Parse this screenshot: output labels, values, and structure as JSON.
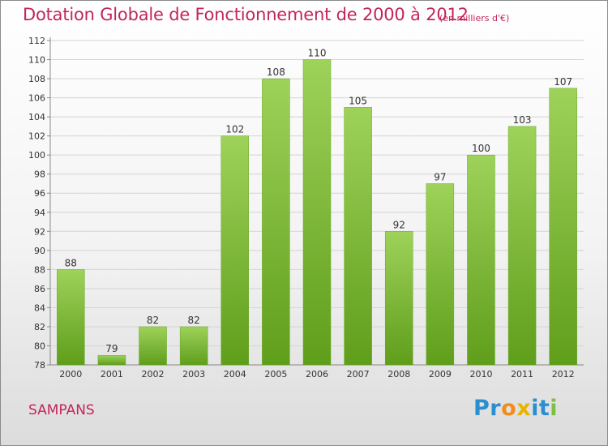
{
  "header": {
    "title": "Dotation Globale de Fonctionnement de 2000 à 2012",
    "unit": "(en milliers d'€)"
  },
  "footer": {
    "commune": "SAMPANS",
    "logo_letters": [
      {
        "char": "P",
        "color": "#2a8fd0"
      },
      {
        "char": "r",
        "color": "#2a8fd0"
      },
      {
        "char": "o",
        "color": "#f28c1b"
      },
      {
        "char": "x",
        "color": "#e8b400"
      },
      {
        "char": "i",
        "color": "#2a8fd0"
      },
      {
        "char": "t",
        "color": "#2a8fd0"
      },
      {
        "char": "i",
        "color": "#7cc242"
      }
    ]
  },
  "colors": {
    "bar_light": "#9ed25a",
    "bar_dark": "#5f9e1b",
    "title": "#c2255c"
  },
  "chart_data": {
    "type": "bar",
    "categories": [
      "2000",
      "2001",
      "2002",
      "2003",
      "2004",
      "2005",
      "2006",
      "2007",
      "2008",
      "2009",
      "2010",
      "2011",
      "2012"
    ],
    "values": [
      88,
      79,
      82,
      82,
      102,
      108,
      110,
      105,
      92,
      97,
      100,
      103,
      107
    ],
    "title": "Dotation Globale de Fonctionnement de 2000 à 2012",
    "ylim": [
      78,
      112
    ],
    "yticks": [
      78,
      80,
      82,
      84,
      86,
      88,
      90,
      92,
      94,
      96,
      98,
      100,
      102,
      104,
      106,
      108,
      110,
      112
    ],
    "grid": true,
    "legend": "none"
  }
}
